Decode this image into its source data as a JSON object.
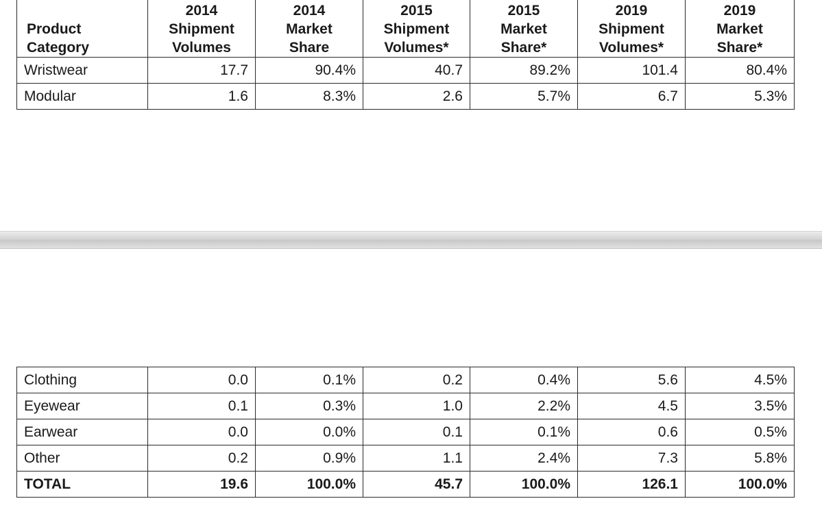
{
  "headers": [
    [
      "Product",
      "Category"
    ],
    [
      "2014",
      "Shipment",
      "Volumes"
    ],
    [
      "2014",
      "Market",
      "Share"
    ],
    [
      "2015",
      "Shipment",
      "Volumes*"
    ],
    [
      "2015",
      "Market",
      "Share*"
    ],
    [
      "2019",
      "Shipment",
      "Volumes*"
    ],
    [
      "2019",
      "Market",
      "Share*"
    ]
  ],
  "rows_top": [
    [
      "Wristwear",
      "17.7",
      "90.4%",
      "40.7",
      "89.2%",
      "101.4",
      "80.4%"
    ],
    [
      "Modular",
      "1.6",
      "8.3%",
      "2.6",
      "5.7%",
      "6.7",
      "5.3%"
    ]
  ],
  "rows_bottom": [
    [
      "Clothing",
      "0.0",
      "0.1%",
      "0.2",
      "0.4%",
      "5.6",
      "4.5%"
    ],
    [
      "Eyewear",
      "0.1",
      "0.3%",
      "1.0",
      "2.2%",
      "4.5",
      "3.5%"
    ],
    [
      "Earwear",
      "0.0",
      "0.0%",
      "0.1",
      "0.1%",
      "0.6",
      "0.5%"
    ],
    [
      "Other",
      "0.2",
      "0.9%",
      "1.1",
      "2.4%",
      "7.3",
      "5.8%"
    ],
    [
      "TOTAL",
      "19.6",
      "100.0%",
      "45.7",
      "100.0%",
      "126.1",
      "100.0%"
    ]
  ]
}
